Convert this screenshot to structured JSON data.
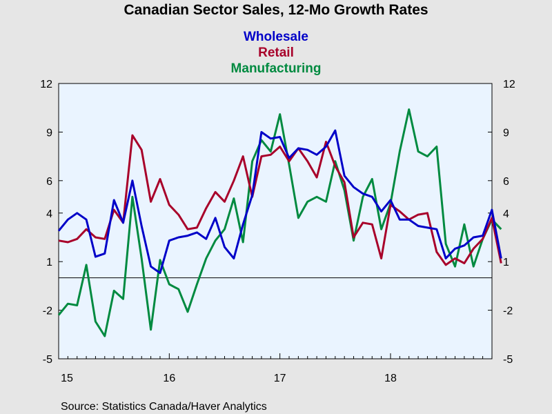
{
  "chart_data": {
    "type": "line",
    "title": "Canadian Sector Sales, 12-Mo Growth Rates",
    "source": "Source:  Statistics Canada/Haver Analytics",
    "y_ticks": [
      12,
      9,
      6,
      4,
      1,
      -2,
      -5
    ],
    "y_tick_labels": [
      "12",
      "9",
      "6",
      "4",
      "1",
      "-2",
      "-5"
    ],
    "ylim": [
      -5,
      12
    ],
    "x_range": [
      2015.0,
      2018.917
    ],
    "x_tick_labels": [
      {
        "label": "15",
        "x": 2015.0
      },
      {
        "label": "16",
        "x": 2016.0
      },
      {
        "label": "17",
        "x": 2017.0
      },
      {
        "label": "18",
        "x": 2018.0
      }
    ],
    "zero_line": true,
    "grid": false,
    "legend_position": "top-center",
    "series": [
      {
        "name": "Wholesale",
        "color": "#0000c8",
        "values": [
          2.9,
          3.6,
          4.0,
          3.6,
          1.3,
          1.5,
          4.8,
          3.4,
          6.0,
          3.2,
          0.7,
          0.3,
          2.3,
          2.5,
          2.6,
          2.8,
          2.4,
          3.7,
          1.9,
          1.2,
          3.3,
          5.1,
          9.0,
          8.6,
          8.7,
          7.4,
          8.0,
          7.9,
          7.6,
          8.1,
          9.1,
          6.3,
          5.6,
          5.2,
          5.0,
          4.1,
          4.8,
          3.6,
          3.6,
          3.2,
          3.1,
          3.0,
          1.2,
          1.8,
          2.0,
          2.5,
          2.6,
          4.2,
          1.2
        ]
      },
      {
        "name": "Retail",
        "color": "#a8002a",
        "values": [
          2.3,
          2.2,
          2.4,
          3.0,
          2.5,
          2.4,
          4.2,
          3.4,
          8.8,
          7.9,
          4.7,
          6.1,
          4.5,
          3.9,
          3.0,
          3.1,
          4.3,
          5.3,
          4.7,
          6.0,
          7.5,
          5.0,
          7.5,
          7.6,
          8.1,
          7.2,
          8.0,
          7.2,
          6.2,
          8.4,
          6.9,
          5.9,
          2.5,
          3.4,
          3.3,
          1.2,
          4.5,
          4.1,
          3.6,
          3.9,
          4.0,
          1.6,
          0.8,
          1.2,
          0.9,
          1.8,
          2.4,
          3.7,
          0.9
        ]
      },
      {
        "name": "Manufacturing",
        "color": "#008a40",
        "values": [
          -2.3,
          -1.6,
          -1.7,
          0.8,
          -2.7,
          -3.6,
          -0.8,
          -1.3,
          5.0,
          1.2,
          -3.2,
          1.1,
          -0.4,
          -0.7,
          -2.1,
          -0.4,
          1.2,
          2.3,
          3.0,
          4.9,
          2.2,
          7.2,
          8.5,
          7.8,
          10.1,
          7.0,
          3.7,
          4.7,
          5.0,
          4.7,
          7.2,
          5.4,
          2.3,
          5.0,
          6.1,
          3.0,
          4.6,
          7.8,
          10.4,
          7.8,
          7.5,
          8.1,
          2.1,
          0.7,
          3.3,
          0.7,
          2.4,
          3.6,
          3.0
        ]
      }
    ]
  }
}
